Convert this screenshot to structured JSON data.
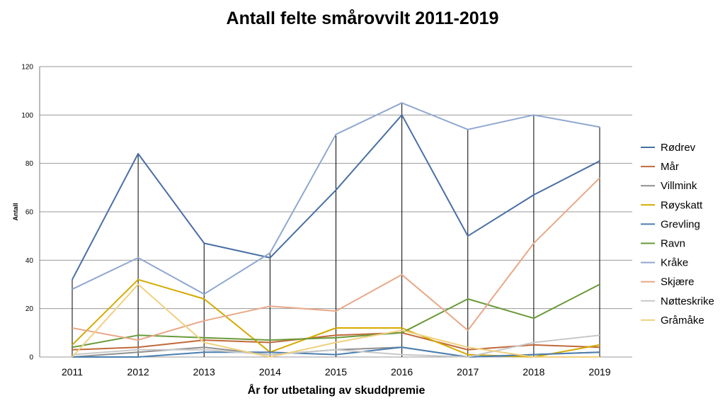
{
  "chart_data": {
    "type": "line",
    "title": "Antall felte smårovvilt 2011-2019",
    "xlabel": "År for utbetaling av skuddpremie",
    "ylabel": "Antall",
    "ylim": [
      0,
      120
    ],
    "yticks": [
      0,
      20,
      40,
      60,
      80,
      100,
      120
    ],
    "grid": true,
    "drop_lines": true,
    "legend": "right",
    "x": [
      "2011",
      "2012",
      "2013",
      "2014",
      "2015",
      "2016",
      "2017",
      "2018",
      "2019"
    ],
    "series": [
      {
        "name": "Rødrev",
        "color": "#4a6fa5",
        "values": [
          32,
          84,
          47,
          41,
          69,
          100,
          50,
          67,
          81
        ]
      },
      {
        "name": "Mår",
        "color": "#c0693a",
        "values": [
          3,
          4,
          7,
          6,
          9,
          10,
          3,
          5,
          4
        ]
      },
      {
        "name": "Villmink",
        "color": "#909090",
        "values": [
          0,
          2,
          4,
          1,
          3,
          4,
          0,
          1,
          2
        ]
      },
      {
        "name": "Røyskatt",
        "color": "#d4aa00",
        "values": [
          5,
          32,
          24,
          2,
          12,
          12,
          1,
          0,
          5
        ]
      },
      {
        "name": "Grevling",
        "color": "#4a7fb0",
        "values": [
          0,
          0,
          2,
          2,
          1,
          4,
          0,
          1,
          2
        ]
      },
      {
        "name": "Ravn",
        "color": "#6a9a3a",
        "values": [
          4,
          9,
          8,
          7,
          8,
          10,
          24,
          16,
          30
        ]
      },
      {
        "name": "Kråke",
        "color": "#8fa8d0",
        "values": [
          28,
          41,
          26,
          43,
          92,
          105,
          94,
          100,
          95
        ]
      },
      {
        "name": "Skjære",
        "color": "#e8a888",
        "values": [
          12,
          7,
          15,
          21,
          19,
          34,
          11,
          47,
          74
        ]
      },
      {
        "name": "Nøtteskrike",
        "color": "#c8c8c8",
        "values": [
          1,
          3,
          3,
          1,
          3,
          1,
          0,
          6,
          9
        ]
      },
      {
        "name": "Gråmåke",
        "color": "#f0d080",
        "values": [
          0,
          30,
          6,
          0,
          6,
          11,
          4,
          0,
          0
        ]
      }
    ]
  }
}
